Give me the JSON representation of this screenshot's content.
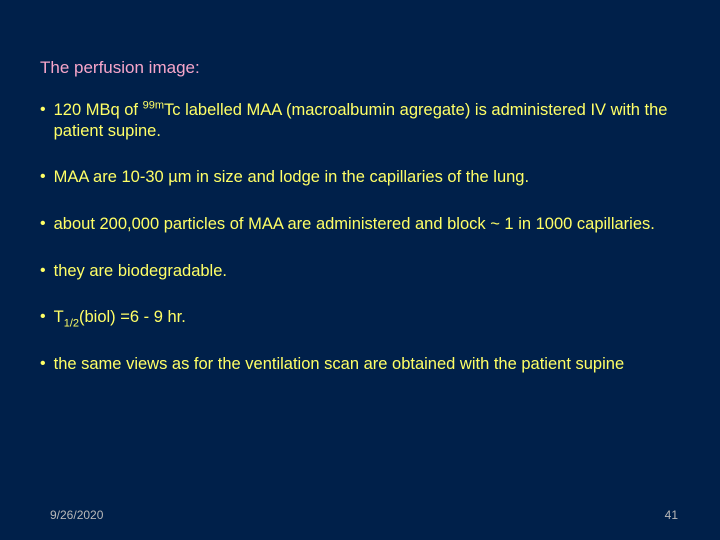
{
  "slide": {
    "background_color": "#00204a",
    "title": {
      "text": "The perfusion image:",
      "color": "#f7a6ca",
      "fontsize": 17
    },
    "bullets": {
      "color": "#ffff66",
      "fontsize": 16.5,
      "items": [
        {
          "pre": "120 MBq of ",
          "sup": "99m",
          "post": "Tc labelled MAA (macroalbumin agregate) is administered IV with the patient supine.",
          "has_sup": true
        },
        {
          "text": " MAA are 10-30 µm in size and lodge in the capillaries of the lung."
        },
        {
          "text": "about 200,000 particles of MAA are administered and block ~ 1 in 1000 capillaries."
        },
        {
          "text": "they are biodegradable."
        },
        {
          "pre": "T",
          "sub": "1/2",
          "post": "(biol) =6 - 9 hr.",
          "has_sub": true
        },
        {
          "text": "the same views as for the ventilation scan are obtained with the patient supine"
        }
      ]
    },
    "footer": {
      "date": "9/26/2020",
      "page": "41",
      "color": "#b8b8b8",
      "fontsize": 12
    }
  }
}
